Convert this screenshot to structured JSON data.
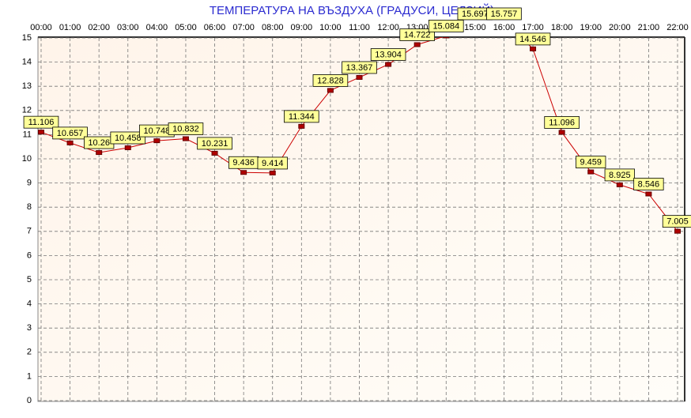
{
  "chart_data": {
    "type": "line",
    "title": "ТЕМПЕРАТУРА НА ВЪЗДУХА  (ГРАДУСИ, ЦЕЛЗИЙ)",
    "categories": [
      "00:00",
      "01:00",
      "02:00",
      "03:00",
      "04:00",
      "05:00",
      "06:00",
      "07:00",
      "08:00",
      "09:00",
      "10:00",
      "11:00",
      "12:00",
      "13:00",
      "14:00",
      "15:00",
      "16:00",
      "17:00",
      "18:00",
      "19:00",
      "20:00",
      "21:00",
      "22:00"
    ],
    "series": [
      {
        "name": "Температура",
        "color": "#cc0000",
        "values": [
          11.106,
          10.657,
          10.26,
          10.458,
          10.748,
          10.832,
          10.231,
          9.436,
          9.414,
          11.344,
          12.828,
          13.367,
          13.904,
          14.722,
          15.084,
          15.697,
          15.757,
          14.546,
          11.096,
          9.459,
          8.925,
          8.546,
          7.005
        ]
      }
    ],
    "ylim": [
      0,
      15
    ],
    "yticks": [
      0,
      1,
      2,
      3,
      4,
      5,
      6,
      7,
      8,
      9,
      10,
      11,
      12,
      13,
      14,
      15
    ],
    "grid": true
  }
}
